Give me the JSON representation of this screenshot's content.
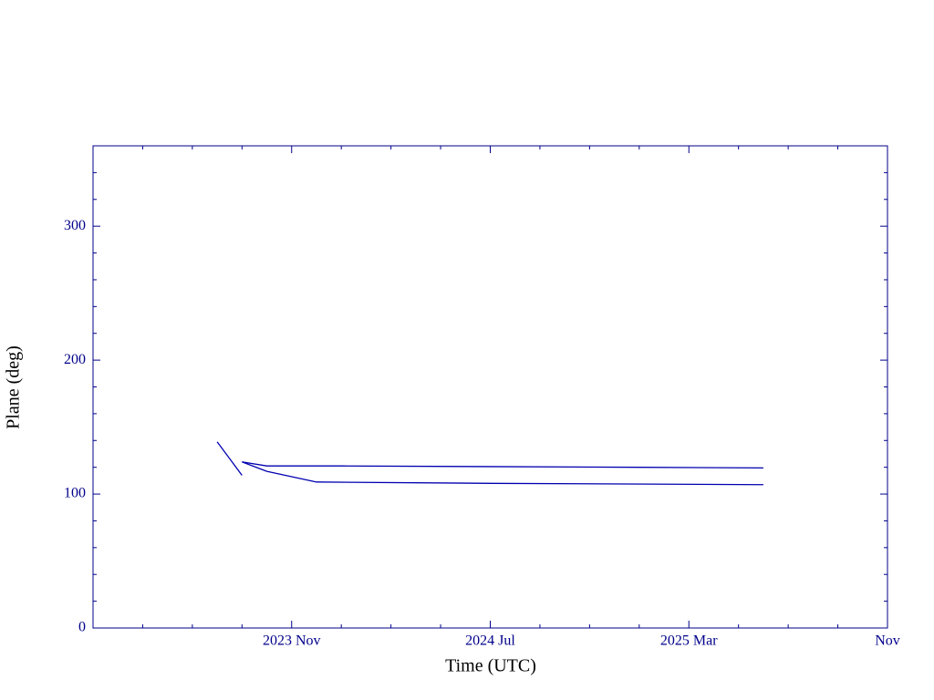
{
  "chart_data": {
    "type": "line",
    "x_label": "Time (UTC)",
    "y_label": "Plane (deg)",
    "xlim": [
      "2023-03",
      "2025-11"
    ],
    "xticks": [
      {
        "value": "2023-11",
        "label": "2023 Nov"
      },
      {
        "value": "2024-07",
        "label": "2024 Jul"
      },
      {
        "value": "2025-03",
        "label": "2025 Mar"
      },
      {
        "value": "2025-11",
        "label": "Nov"
      }
    ],
    "xminorticks": [
      "2023-05",
      "2023-07",
      "2023-09",
      "2024-01",
      "2024-03",
      "2024-05",
      "2024-09",
      "2024-11",
      "2025-01",
      "2025-05",
      "2025-07",
      "2025-09"
    ],
    "ylim": [
      0,
      360
    ],
    "yticks": [
      0,
      100,
      200,
      300
    ],
    "yminorticks": [
      20,
      40,
      60,
      80,
      120,
      140,
      160,
      180,
      220,
      240,
      260,
      280,
      320,
      340
    ],
    "axis_color": "#00008b",
    "series": [
      {
        "color": "#0000b0",
        "x": [
          "2023-08",
          "2023-09"
        ],
        "values": [
          139,
          114
        ]
      },
      {
        "color": "#0000b0",
        "x": [
          "2023-09",
          "2023-10",
          "2024-01",
          "2024-07",
          "2025-01",
          "2025-06"
        ],
        "values": [
          124,
          121,
          121,
          120.5,
          120,
          119.5
        ]
      },
      {
        "color": "#0000b0",
        "x": [
          "2023-09",
          "2023-10",
          "2023-12",
          "2024-07",
          "2025-06"
        ],
        "values": [
          124,
          117,
          109,
          108,
          107
        ]
      }
    ]
  }
}
